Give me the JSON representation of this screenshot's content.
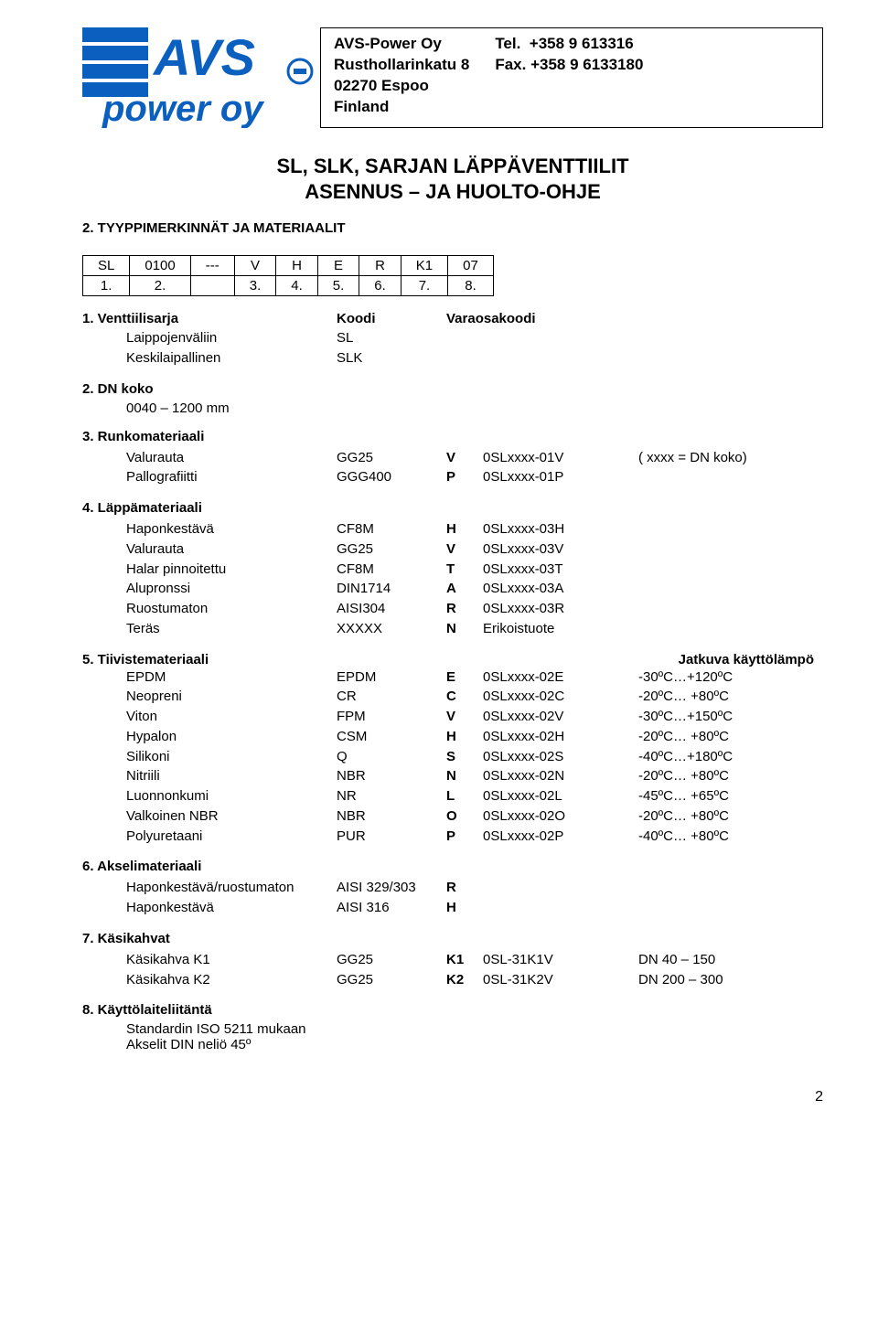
{
  "header": {
    "company": "AVS-Power Oy",
    "address1": "Rusthollarinkatu 8",
    "address2": "02270 Espoo",
    "country": "Finland",
    "tel_label": "Tel.",
    "tel": "+358 9 613316",
    "fax_label": "Fax.",
    "fax": "+358 9 6133180",
    "logo_text": "AVS",
    "logo_sub": "power oy"
  },
  "title": {
    "line1": "SL, SLK, SARJAN LÄPPÄVENTTIILIT",
    "line2": "ASENNUS – JA HUOLTO-OHJE"
  },
  "section2": {
    "heading": "2.    TYYPPIMERKINNÄT JA MATERIAALIT",
    "code_row1": [
      "SL",
      "0100",
      "---",
      "V",
      "H",
      "E",
      "R",
      "K1",
      "07"
    ],
    "code_row2": [
      "1.",
      "2.",
      "",
      "3.",
      "4.",
      "5.",
      "6.",
      "7.",
      "8."
    ]
  },
  "s1": {
    "heading": "1.    Venttiilisarja",
    "koodi_label": "Koodi",
    "varaosa_label": "Varaosakoodi",
    "rows": [
      {
        "name": "Laippojenväliin",
        "code": "SL"
      },
      {
        "name": "Keskilaipallinen",
        "code": "SLK"
      }
    ]
  },
  "s2": {
    "heading": "2.    DN koko",
    "range": "0040 – 1200 mm"
  },
  "s3": {
    "heading": "3.    Runkomateriaali",
    "rows": [
      {
        "name": "Valurauta",
        "mat": "GG25",
        "sym": "V",
        "code": "0SLxxxx-01V",
        "extra": "( xxxx = DN koko)"
      },
      {
        "name": "Pallografiitti",
        "mat": "GGG400",
        "sym": "P",
        "code": "0SLxxxx-01P",
        "extra": ""
      }
    ]
  },
  "s4": {
    "heading": "4.    Läppämateriaali",
    "rows": [
      {
        "name": "Haponkestävä",
        "mat": "CF8M",
        "sym": "H",
        "code": "0SLxxxx-03H"
      },
      {
        "name": "Valurauta",
        "mat": "GG25",
        "sym": "V",
        "code": "0SLxxxx-03V"
      },
      {
        "name": "Halar pinnoitettu",
        "mat": "CF8M",
        "sym": "T",
        "code": "0SLxxxx-03T"
      },
      {
        "name": "Alupronssi",
        "mat": "DIN1714",
        "sym": "A",
        "code": "0SLxxxx-03A"
      },
      {
        "name": "Ruostumaton",
        "mat": "AISI304",
        "sym": "R",
        "code": "0SLxxxx-03R"
      },
      {
        "name": "Teräs",
        "mat": "XXXXX",
        "sym": "N",
        "code": "Erikoistuote"
      }
    ]
  },
  "s5": {
    "heading": "5.    Tiivistemateriaali",
    "right_label": "Jatkuva käyttölämpö",
    "rows": [
      {
        "name": "EPDM",
        "mat": "EPDM",
        "sym": "E",
        "code": "0SLxxxx-02E",
        "temp": "-30ºC…+120ºC"
      },
      {
        "name": "Neopreni",
        "mat": "CR",
        "sym": "C",
        "code": "0SLxxxx-02C",
        "temp": "-20ºC… +80ºC"
      },
      {
        "name": "Viton",
        "mat": "FPM",
        "sym": "V",
        "code": "0SLxxxx-02V",
        "temp": "-30ºC…+150ºC"
      },
      {
        "name": "Hypalon",
        "mat": "CSM",
        "sym": "H",
        "code": "0SLxxxx-02H",
        "temp": "-20ºC… +80ºC"
      },
      {
        "name": "Silikoni",
        "mat": "Q",
        "sym": "S",
        "code": "0SLxxxx-02S",
        "temp": "-40ºC…+180ºC"
      },
      {
        "name": "Nitriili",
        "mat": "NBR",
        "sym": "N",
        "code": "0SLxxxx-02N",
        "temp": "-20ºC… +80ºC"
      },
      {
        "name": "Luonnonkumi",
        "mat": "NR",
        "sym": "L",
        "code": "0SLxxxx-02L",
        "temp": "-45ºC… +65ºC"
      },
      {
        "name": "Valkoinen NBR",
        "mat": "NBR",
        "sym": "O",
        "code": "0SLxxxx-02O",
        "temp": "-20ºC… +80ºC"
      },
      {
        "name": "Polyuretaani",
        "mat": "PUR",
        "sym": "P",
        "code": "0SLxxxx-02P",
        "temp": "-40ºC… +80ºC"
      }
    ]
  },
  "s6": {
    "heading": "6.    Akselimateriaali",
    "rows": [
      {
        "name": "Haponkestävä/ruostumaton",
        "mat": "AISI 329/303",
        "sym": "R"
      },
      {
        "name": "Haponkestävä",
        "mat": "AISI 316",
        "sym": "H"
      }
    ]
  },
  "s7": {
    "heading": "7.    Käsikahvat",
    "rows": [
      {
        "name": "Käsikahva K1",
        "mat": "GG25",
        "sym": "K1",
        "code": "0SL-31K1V",
        "extra": "DN  40 – 150"
      },
      {
        "name": "Käsikahva K2",
        "mat": "GG25",
        "sym": "K2",
        "code": "0SL-31K2V",
        "extra": "DN 200 – 300"
      }
    ]
  },
  "s8": {
    "heading": "8.    Käyttölaiteliitäntä",
    "line1": "Standardin ISO 5211 mukaan",
    "line2": "Akselit DIN neliö 45º"
  },
  "page_number": "2"
}
